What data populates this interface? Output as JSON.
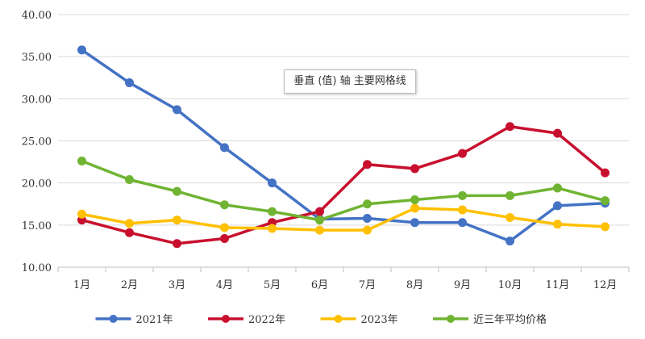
{
  "chart_data": {
    "type": "line",
    "title": "",
    "xlabel": "",
    "ylabel": "",
    "ylim": [
      10,
      40
    ],
    "yticks": [
      "10.00",
      "15.00",
      "20.00",
      "25.00",
      "30.00",
      "35.00",
      "40.00"
    ],
    "ytick_values": [
      10,
      15,
      20,
      25,
      30,
      35,
      40
    ],
    "categories": [
      "1月",
      "2月",
      "3月",
      "4月",
      "5月",
      "6月",
      "7月",
      "8月",
      "9月",
      "10月",
      "11月",
      "12月"
    ],
    "grid": true,
    "legend_position": "bottom",
    "series": [
      {
        "name": "2021年",
        "color": "#4472C4",
        "values": [
          35.8,
          31.9,
          28.7,
          24.2,
          20.0,
          15.7,
          15.8,
          15.3,
          15.3,
          13.1,
          17.3,
          17.6
        ]
      },
      {
        "name": "2022年",
        "color": "#C8102E",
        "values": [
          15.6,
          14.1,
          12.8,
          13.4,
          15.3,
          16.6,
          22.2,
          21.7,
          23.5,
          26.7,
          25.9,
          21.2
        ]
      },
      {
        "name": "2023年",
        "color": "#FFC000",
        "values": [
          16.3,
          15.2,
          15.6,
          14.7,
          14.6,
          14.4,
          14.4,
          17.0,
          16.8,
          15.9,
          15.1,
          14.8
        ]
      },
      {
        "name": "近三年平均价格",
        "color": "#70B433",
        "values": [
          22.6,
          20.4,
          19.0,
          17.4,
          16.6,
          15.6,
          17.5,
          18.0,
          18.5,
          18.5,
          19.4,
          17.9
        ]
      }
    ]
  },
  "tooltip": {
    "text": "垂直 (值) 轴 主要网格线"
  }
}
